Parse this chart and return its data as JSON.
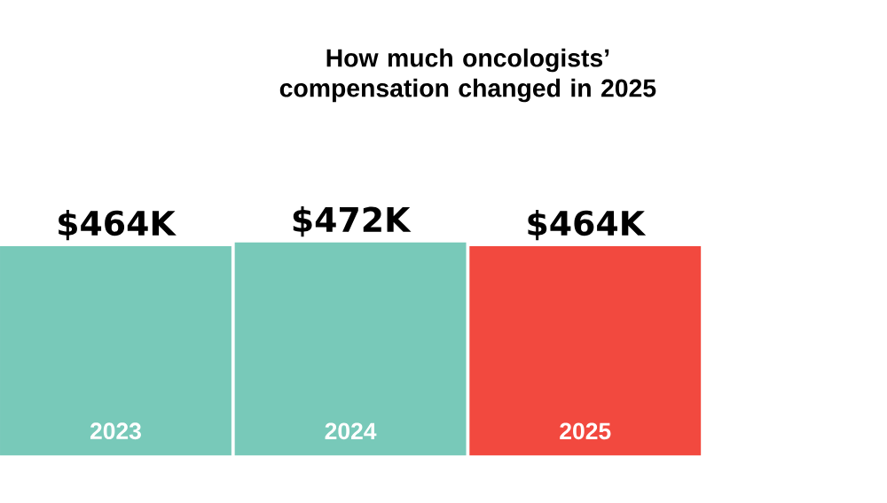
{
  "chart_data": {
    "type": "bar",
    "title": "How much oncologists’ compensation changed in 2025",
    "categories": [
      "2023",
      "2024",
      "2025"
    ],
    "values": [
      464,
      472,
      464
    ],
    "colors": [
      "#78c9b9",
      "#78c9b9",
      "#f2493f"
    ],
    "value_labels": [
      "$464K",
      "$472K",
      "$464K"
    ]
  }
}
